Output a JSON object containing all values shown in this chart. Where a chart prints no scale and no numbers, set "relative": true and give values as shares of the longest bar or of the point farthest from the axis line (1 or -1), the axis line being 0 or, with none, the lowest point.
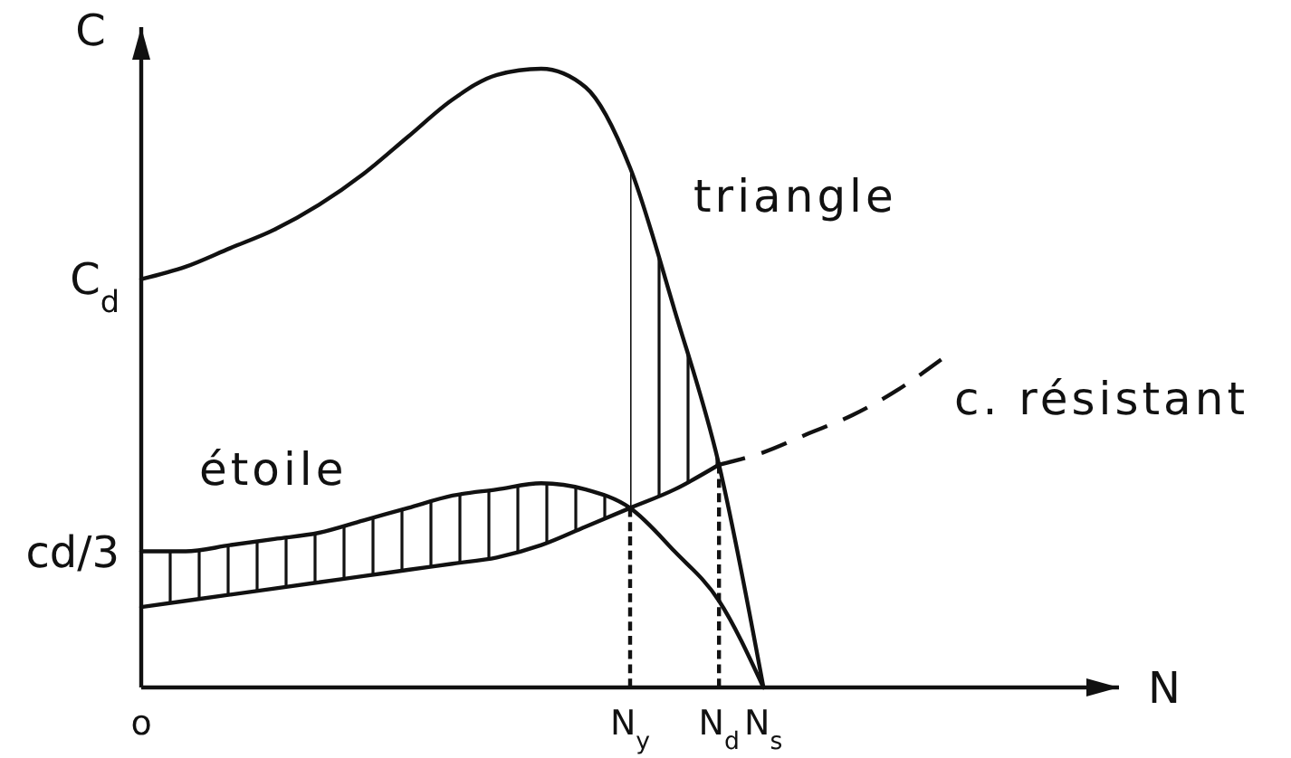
{
  "chart_data": {
    "type": "line",
    "relative": true,
    "xlabel": "N",
    "ylabel": "C",
    "line_style": "solid",
    "categories": [
      "o",
      null,
      null,
      null,
      null,
      null,
      null,
      null,
      null,
      null,
      null,
      "N$_{y}$",
      null,
      "N$_{d}$",
      "N$_{s}$",
      null,
      null,
      null,
      null,
      null,
      null,
      null,
      null
    ],
    "annotations": [
      "C$_{d}$",
      "cd/3"
    ],
    "ref_lines": [
      {
        "axis": "x",
        "value": "N$_{y}$",
        "line_style": "dotted"
      },
      {
        "axis": "x",
        "value": "N$_{d}$",
        "line_style": "dotted"
      }
    ],
    "series": [
      {
        "name": "triangle",
        "color": "#111111",
        "values": [
          0.66,
          0.68,
          0.71,
          0.74,
          0.78,
          0.83,
          0.89,
          0.95,
          0.99,
          1,
          0.97,
          0.84,
          0.61,
          0.36,
          0,
          null,
          null,
          null,
          null,
          null,
          null,
          null,
          null
        ],
        "lower": [
          null,
          null,
          null,
          null,
          null,
          null,
          null,
          null,
          null,
          null,
          null,
          0.29,
          0.32,
          0.36,
          null,
          null,
          null,
          null,
          null,
          null,
          null,
          null,
          null
        ],
        "upper": [
          null,
          null,
          null,
          null,
          null,
          null,
          null,
          null,
          null,
          null,
          null,
          0.84,
          0.61,
          0.36,
          null,
          null,
          null,
          null,
          null,
          null,
          null,
          null,
          null
        ]
      },
      {
        "name": "étoile",
        "color": "#111111",
        "values": [
          0.22,
          0.22,
          0.23,
          0.24,
          0.25,
          0.27,
          0.29,
          0.31,
          0.32,
          0.33,
          0.32,
          0.29,
          0.22,
          0.14,
          0,
          null,
          null,
          null,
          null,
          null,
          null,
          null,
          null
        ],
        "lower": [
          0.13,
          0.14,
          0.15,
          0.16,
          0.17,
          0.18,
          0.19,
          0.2,
          0.21,
          0.23,
          0.26,
          0.29,
          null,
          null,
          null,
          null,
          null,
          null,
          null,
          null,
          null,
          null,
          null
        ],
        "upper": [
          0.22,
          0.22,
          0.23,
          0.24,
          0.25,
          0.27,
          0.29,
          0.31,
          0.32,
          0.33,
          0.32,
          0.29,
          null,
          null,
          null,
          null,
          null,
          null,
          null,
          null,
          null,
          null,
          null
        ]
      },
      {
        "color": "#111111",
        "values": [
          0.13,
          0.14,
          0.15,
          0.16,
          0.17,
          0.18,
          0.19,
          0.2,
          0.21,
          0.23,
          0.26,
          0.29,
          0.32,
          0.36,
          null,
          null,
          null,
          null,
          null,
          null,
          null,
          null,
          null
        ]
      },
      {
        "name": "c. résistant",
        "color": "#111111",
        "line_style": "dashed",
        "values": [
          null,
          null,
          null,
          null,
          null,
          null,
          null,
          null,
          null,
          null,
          null,
          null,
          null,
          0.36,
          0.38,
          0.41,
          0.44,
          0.48,
          0.53,
          null,
          null,
          null,
          null
        ]
      }
    ]
  }
}
